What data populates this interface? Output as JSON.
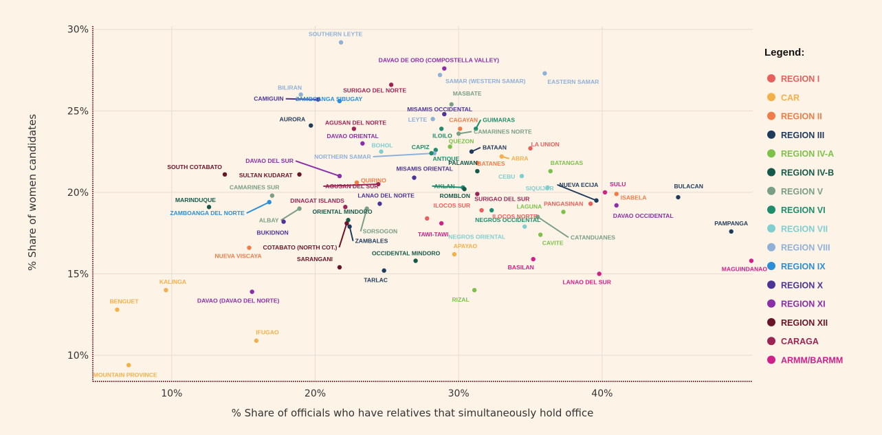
{
  "chart_data": {
    "type": "scatter",
    "xlabel": "% Share of officials who have relatives that simultaneously hold office",
    "ylabel": "% Share of women candidates",
    "xlim": [
      4.5,
      50.5
    ],
    "ylim": [
      8.4,
      30.2
    ],
    "x_ticks": [
      10,
      20,
      30,
      40
    ],
    "x_tick_labels": [
      "10%",
      "20%",
      "30%",
      "40%"
    ],
    "y_ticks": [
      10,
      15,
      20,
      25,
      30
    ],
    "y_tick_labels": [
      "10%",
      "15%",
      "20%",
      "25%",
      "30%"
    ],
    "grid": true,
    "legend_position": "right",
    "legend": {
      "title": "Legend:",
      "items": [
        {
          "name": "REGION I",
          "color": "#e8605c"
        },
        {
          "name": "CAR",
          "color": "#f2b04b"
        },
        {
          "name": "REGION II",
          "color": "#f07c4a"
        },
        {
          "name": "REGION III",
          "color": "#1e3a5c"
        },
        {
          "name": "REGION IV-A",
          "color": "#7cc24a"
        },
        {
          "name": "REGION IV-B",
          "color": "#15594a"
        },
        {
          "name": "REGION V",
          "color": "#7a9e86"
        },
        {
          "name": "REGION VI",
          "color": "#1f8c6e"
        },
        {
          "name": "REGION VII",
          "color": "#7fcfd0"
        },
        {
          "name": "REGION VIII",
          "color": "#8fb0d8"
        },
        {
          "name": "REGION IX",
          "color": "#2a8fd8"
        },
        {
          "name": "REGION X",
          "color": "#4b3496"
        },
        {
          "name": "REGION XI",
          "color": "#8a2fa8"
        },
        {
          "name": "REGION XII",
          "color": "#6a1428"
        },
        {
          "name": "CARAGA",
          "color": "#9c2454"
        },
        {
          "name": "ARMM/BARMM",
          "color": "#d0208a"
        }
      ]
    },
    "points": [
      {
        "name": "SOUTHERN LEYTE",
        "region": "REGION VIII",
        "x": 21.8,
        "y": 29.2
      },
      {
        "name": "DAVAO DE ORO (COMPOSTELLA VALLEY)",
        "region": "REGION XI",
        "x": 29.0,
        "y": 27.6
      },
      {
        "name": "SAMAR (WESTERN SAMAR)",
        "region": "REGION VIII",
        "x": 28.7,
        "y": 27.2
      },
      {
        "name": "EASTERN SAMAR",
        "region": "REGION VIII",
        "x": 36.0,
        "y": 27.3
      },
      {
        "name": "SURIGAO DEL NORTE",
        "region": "CARAGA",
        "x": 25.3,
        "y": 26.6
      },
      {
        "name": "BILIRAN",
        "region": "REGION VIII",
        "x": 19.0,
        "y": 26.0
      },
      {
        "name": "CAMIGUIN",
        "region": "REGION X",
        "x": 20.2,
        "y": 25.7
      },
      {
        "name": "MASBATE",
        "region": "REGION V",
        "x": 29.5,
        "y": 25.4
      },
      {
        "name": "ZAMBOANGA SIBUGAY",
        "region": "REGION IX",
        "x": 21.7,
        "y": 25.6
      },
      {
        "name": "MISAMIS OCCIDENTAL",
        "region": "REGION X",
        "x": 29.0,
        "y": 24.8
      },
      {
        "name": "GUIMARAS",
        "region": "REGION VI",
        "x": 31.2,
        "y": 23.9
      },
      {
        "name": "LEYTE",
        "region": "REGION VIII",
        "x": 28.2,
        "y": 24.5
      },
      {
        "name": "AURORA",
        "region": "REGION III",
        "x": 19.7,
        "y": 24.1
      },
      {
        "name": "AGUSAN DEL NORTE",
        "region": "CARAGA",
        "x": 22.7,
        "y": 23.9
      },
      {
        "name": "CAGAYAN",
        "region": "REGION II",
        "x": 30.1,
        "y": 23.9
      },
      {
        "name": "CAMARINES NORTE",
        "region": "REGION V",
        "x": 30.0,
        "y": 23.6
      },
      {
        "name": "ILOILO",
        "region": "REGION VI",
        "x": 28.8,
        "y": 23.9
      },
      {
        "name": "DAVAO ORIENTAL",
        "region": "REGION XI",
        "x": 23.3,
        "y": 23.0
      },
      {
        "name": "BOHOL",
        "region": "REGION VII",
        "x": 24.6,
        "y": 22.5
      },
      {
        "name": "QUEZON",
        "region": "REGION IV-A",
        "x": 29.4,
        "y": 22.8
      },
      {
        "name": "LA UNION",
        "region": "REGION I",
        "x": 35.0,
        "y": 22.7
      },
      {
        "name": "BATAAN",
        "region": "REGION III",
        "x": 30.9,
        "y": 22.5
      },
      {
        "name": "CAPIZ",
        "region": "REGION VI",
        "x": 28.4,
        "y": 22.6
      },
      {
        "name": "NORTHERN SAMAR",
        "region": "REGION VIII",
        "x": 28.3,
        "y": 22.4
      },
      {
        "name": "ANTIQUE",
        "region": "REGION VI",
        "x": 28.1,
        "y": 22.4
      },
      {
        "name": "ABRA",
        "region": "CAR",
        "x": 33.0,
        "y": 22.2
      },
      {
        "name": "BATANES",
        "region": "REGION II",
        "x": 31.3,
        "y": 21.8
      },
      {
        "name": "DAVAO DEL SUR",
        "region": "REGION XI",
        "x": 21.7,
        "y": 21.0
      },
      {
        "name": "QUIRINO",
        "region": "REGION II",
        "x": 22.9,
        "y": 20.6
      },
      {
        "name": "SOUTH COTABATO",
        "region": "REGION XII",
        "x": 13.7,
        "y": 21.1
      },
      {
        "name": "SULTAN KUDARAT",
        "region": "REGION XII",
        "x": 18.9,
        "y": 21.1
      },
      {
        "name": "BATANGAS",
        "region": "REGION IV-A",
        "x": 36.4,
        "y": 21.3
      },
      {
        "name": "PALAWAN",
        "region": "REGION IV-B",
        "x": 31.3,
        "y": 21.3
      },
      {
        "name": "MISAMIS ORIENTAL",
        "region": "REGION X",
        "x": 26.9,
        "y": 20.9
      },
      {
        "name": "CEBU",
        "region": "REGION VII",
        "x": 34.4,
        "y": 21.0
      },
      {
        "name": "AGUSAN DEL SUR",
        "region": "CARAGA",
        "x": 24.4,
        "y": 20.5
      },
      {
        "name": "AKLAN",
        "region": "REGION VI",
        "x": 30.3,
        "y": 20.3
      },
      {
        "name": "ROMBLON",
        "region": "REGION IV-B",
        "x": 30.4,
        "y": 20.2
      },
      {
        "name": "SIQUIJOR",
        "region": "REGION VII",
        "x": 36.2,
        "y": 20.3
      },
      {
        "name": "SULU",
        "region": "ARMM/BARMM",
        "x": 40.2,
        "y": 20.0
      },
      {
        "name": "ISABELA",
        "region": "REGION II",
        "x": 41.0,
        "y": 19.9
      },
      {
        "name": "CAMARINES SUR",
        "region": "REGION V",
        "x": 17.0,
        "y": 19.8
      },
      {
        "name": "SURIGAO DEL SUR",
        "region": "CARAGA",
        "x": 31.3,
        "y": 19.9
      },
      {
        "name": "NUEVA ECIJA",
        "region": "REGION III",
        "x": 39.6,
        "y": 19.5
      },
      {
        "name": "BULACAN",
        "region": "REGION III",
        "x": 45.3,
        "y": 19.7
      },
      {
        "name": "ZAMBOANGA DEL NORTE",
        "region": "REGION IX",
        "x": 16.8,
        "y": 19.4
      },
      {
        "name": "LANAO DEL NORTE",
        "region": "REGION X",
        "x": 24.5,
        "y": 19.3
      },
      {
        "name": "PANGASINAN",
        "region": "REGION I",
        "x": 39.2,
        "y": 19.3
      },
      {
        "name": "DAVAO OCCIDENTAL",
        "region": "REGION XI",
        "x": 41.0,
        "y": 19.2
      },
      {
        "name": "MARINDUQUE",
        "region": "REGION IV-B",
        "x": 12.6,
        "y": 19.1
      },
      {
        "name": "DINAGAT ISLANDS",
        "region": "CARAGA",
        "x": 22.1,
        "y": 19.1
      },
      {
        "name": "ALBAY",
        "region": "REGION V",
        "x": 18.9,
        "y": 19.0
      },
      {
        "name": "SORSOGON",
        "region": "REGION V",
        "x": 23.6,
        "y": 19.0
      },
      {
        "name": "NEGROS OCCIDENTAL",
        "region": "REGION VI",
        "x": 32.3,
        "y": 18.9
      },
      {
        "name": "ILOCOS SUR",
        "region": "REGION I",
        "x": 31.6,
        "y": 18.9
      },
      {
        "name": "LAGUNA",
        "region": "REGION IV-A",
        "x": 37.3,
        "y": 18.8
      },
      {
        "name": "ORIENTAL MINDORO",
        "region": "REGION IV-B",
        "x": 22.3,
        "y": 18.3
      },
      {
        "name": "CATANDUANES",
        "region": "REGION V",
        "x": 35.5,
        "y": 18.5
      },
      {
        "name": "ILOCOS NORTE",
        "region": "REGION I",
        "x": 27.8,
        "y": 18.4
      },
      {
        "name": "BUKIDNON",
        "region": "REGION X",
        "x": 17.8,
        "y": 18.2
      },
      {
        "name": "COTABATO (NORTH COT.)",
        "region": "REGION XII",
        "x": 22.2,
        "y": 18.1
      },
      {
        "name": "TAWI-TAWI",
        "region": "ARMM/BARMM",
        "x": 28.8,
        "y": 18.1
      },
      {
        "name": "NEGROS ORIENTAL",
        "region": "REGION VII",
        "x": 34.6,
        "y": 17.9
      },
      {
        "name": "ZAMBALES",
        "region": "REGION III",
        "x": 22.4,
        "y": 17.9
      },
      {
        "name": "PAMPANGA",
        "region": "REGION III",
        "x": 49.0,
        "y": 17.6
      },
      {
        "name": "CAVITE",
        "region": "REGION IV-A",
        "x": 35.7,
        "y": 17.4
      },
      {
        "name": "NUEVA VISCAYA",
        "region": "REGION II",
        "x": 15.4,
        "y": 16.6
      },
      {
        "name": "APAYAO",
        "region": "CAR",
        "x": 29.7,
        "y": 16.2
      },
      {
        "name": "OCCIDENTAL MINDORO",
        "region": "REGION IV-B",
        "x": 27.0,
        "y": 15.8
      },
      {
        "name": "BASILAN",
        "region": "ARMM/BARMM",
        "x": 35.2,
        "y": 15.9
      },
      {
        "name": "MAGUINDANAO",
        "region": "ARMM/BARMM",
        "x": 50.4,
        "y": 15.8
      },
      {
        "name": "SARANGANI",
        "region": "REGION XII",
        "x": 21.7,
        "y": 15.4
      },
      {
        "name": "TARLAC",
        "region": "REGION III",
        "x": 24.8,
        "y": 15.2
      },
      {
        "name": "LANAO DEL SUR",
        "region": "ARMM/BARMM",
        "x": 39.8,
        "y": 15.0
      },
      {
        "name": "KALINGA",
        "region": "CAR",
        "x": 9.6,
        "y": 14.0
      },
      {
        "name": "RIZAL",
        "region": "REGION IV-A",
        "x": 31.1,
        "y": 14.0
      },
      {
        "name": "DAVAO (DAVAO DEL NORTE)",
        "region": "REGION XI",
        "x": 15.6,
        "y": 13.9
      },
      {
        "name": "BENGUET",
        "region": "CAR",
        "x": 6.2,
        "y": 12.8
      },
      {
        "name": "IFUGAO",
        "region": "CAR",
        "x": 15.9,
        "y": 10.9
      },
      {
        "name": "MOUNTAIN PROVINCE",
        "region": "CAR",
        "x": 7.0,
        "y": 9.4
      }
    ]
  }
}
